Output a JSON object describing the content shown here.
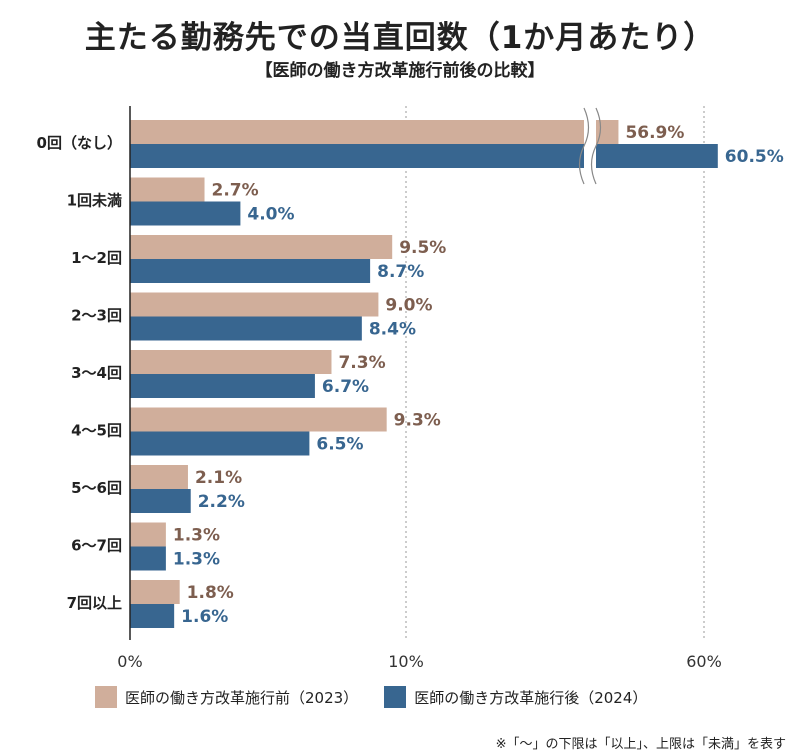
{
  "title": "主たる勤務先での当直回数（1か月あたり）",
  "subtitle": "【医師の働き方改革施行前後の比較】",
  "colors": {
    "before": "#d0ae9b",
    "after": "#386690",
    "before_text": "#7d5e4f",
    "after_text": "#386690"
  },
  "chart_data": {
    "type": "bar",
    "orientation": "horizontal",
    "title": "主たる勤務先での当直回数（1か月あたり）",
    "subtitle": "【医師の働き方改革施行前後の比較】",
    "categories": [
      "0回（なし）",
      "1回未満",
      "1〜2回",
      "2〜3回",
      "3〜4回",
      "4〜5回",
      "5〜6回",
      "6〜7回",
      "7回以上"
    ],
    "series": [
      {
        "name": "医師の働き方改革施行前（2023）",
        "values": [
          56.9,
          2.7,
          9.5,
          9.0,
          7.3,
          9.3,
          2.1,
          1.3,
          1.8
        ],
        "labels": [
          "56.9%",
          "2.7%",
          "9.5%",
          "9.0%",
          "7.3%",
          "9.3%",
          "2.1%",
          "1.3%",
          "1.8%"
        ]
      },
      {
        "name": "医師の働き方改革施行後（2024）",
        "values": [
          60.5,
          4.0,
          8.7,
          8.4,
          6.7,
          6.5,
          2.2,
          1.3,
          1.6
        ],
        "labels": [
          "60.5%",
          "4.0%",
          "8.7%",
          "8.4%",
          "6.7%",
          "6.5%",
          "2.2%",
          "1.3%",
          "1.6%"
        ]
      }
    ],
    "xticks": [
      0,
      10,
      60
    ],
    "xtick_labels": [
      "0%",
      "10%",
      "60%"
    ],
    "axis_break": {
      "from": 15,
      "to": 55
    },
    "xlim": [
      0,
      60
    ],
    "grid": true,
    "legend_position": "bottom"
  },
  "footnote": "※「〜」の下限は「以上」、上限は「未満」を表す"
}
